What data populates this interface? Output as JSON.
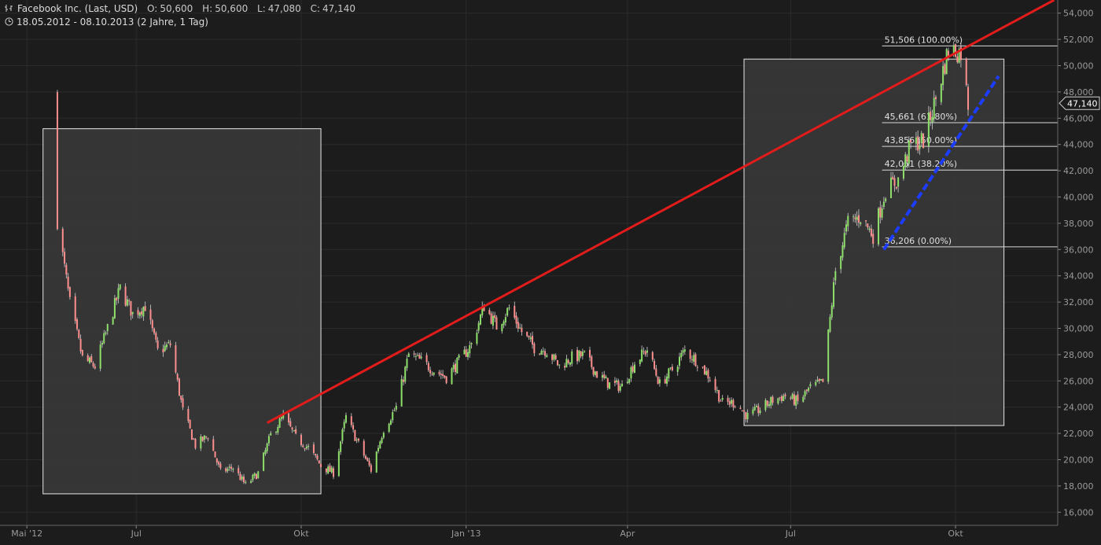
{
  "header": {
    "instrument": "Facebook Inc. (Last, USD)",
    "open_label": "O:",
    "open_value": "50,600",
    "high_label": "H:",
    "high_value": "50,600",
    "low_label": "L:",
    "low_value": "47,080",
    "close_label": "C:",
    "close_value": "47,140",
    "period": "18.05.2012 - 08.10.2013 (2 Jahre, 1 Tag)"
  },
  "chart_data": {
    "type": "candlestick",
    "title": "Facebook Inc. (Last, USD)",
    "ylim": [
      15000,
      55000
    ],
    "y_ticks": [
      16000,
      18000,
      20000,
      22000,
      24000,
      26000,
      28000,
      30000,
      32000,
      34000,
      36000,
      38000,
      40000,
      42000,
      44000,
      46000,
      48000,
      50000,
      52000,
      54000
    ],
    "y_tick_labels": [
      "16,000",
      "18,000",
      "20,000",
      "22,000",
      "24,000",
      "26,000",
      "28,000",
      "30,000",
      "32,000",
      "34,000",
      "36,000",
      "38,000",
      "40,000",
      "42,000",
      "44,000",
      "46,000",
      "48,000",
      "50,000",
      "52,000",
      "54,000"
    ],
    "x_range": [
      "2012-04-16",
      "2013-11-27"
    ],
    "x_ticks": [
      {
        "date": "2012-05-01",
        "label": "Mai '12"
      },
      {
        "date": "2012-07-01",
        "label": "Jul"
      },
      {
        "date": "2012-10-01",
        "label": "Okt"
      },
      {
        "date": "2013-01-01",
        "label": "Jan '13"
      },
      {
        "date": "2013-04-01",
        "label": "Apr"
      },
      {
        "date": "2013-07-01",
        "label": "Jul"
      },
      {
        "date": "2013-10-01",
        "label": "Okt"
      }
    ],
    "grid": true,
    "last_price_label": "47,140",
    "last_price": 47140,
    "up_color": "#8ee06a",
    "down_color": "#ff8f8f",
    "close_series": [
      [
        "2012-05-18",
        38230
      ],
      [
        "2012-05-25",
        31910
      ],
      [
        "2012-06-01",
        27720
      ],
      [
        "2012-06-08",
        27100
      ],
      [
        "2012-06-15",
        30010
      ],
      [
        "2012-06-22",
        33050
      ],
      [
        "2012-06-29",
        31100
      ],
      [
        "2012-07-06",
        31730
      ],
      [
        "2012-07-13",
        28250
      ],
      [
        "2012-07-20",
        28760
      ],
      [
        "2012-07-27",
        23710
      ],
      [
        "2012-08-03",
        21090
      ],
      [
        "2012-08-10",
        21810
      ],
      [
        "2012-08-17",
        19050
      ],
      [
        "2012-08-24",
        19410
      ],
      [
        "2012-08-31",
        18060
      ],
      [
        "2012-09-07",
        18980
      ],
      [
        "2012-09-14",
        21870
      ],
      [
        "2012-09-21",
        23290
      ],
      [
        "2012-09-28",
        21660
      ],
      [
        "2012-10-05",
        20910
      ],
      [
        "2012-10-12",
        19520
      ],
      [
        "2012-10-19",
        19000
      ],
      [
        "2012-10-26",
        23230
      ],
      [
        "2012-11-02",
        21180
      ],
      [
        "2012-11-09",
        19210
      ],
      [
        "2012-11-16",
        22360
      ],
      [
        "2012-11-23",
        24000
      ],
      [
        "2012-11-30",
        28000
      ],
      [
        "2012-12-07",
        27490
      ],
      [
        "2012-12-14",
        26810
      ],
      [
        "2012-12-21",
        26260
      ],
      [
        "2012-12-28",
        27500
      ],
      [
        "2013-01-04",
        28760
      ],
      [
        "2013-01-11",
        31720
      ],
      [
        "2013-01-18",
        30140
      ],
      [
        "2013-01-25",
        31540
      ],
      [
        "2013-02-01",
        29730
      ],
      [
        "2013-02-08",
        28550
      ],
      [
        "2013-02-15",
        28320
      ],
      [
        "2013-02-22",
        27130
      ],
      [
        "2013-03-01",
        27780
      ],
      [
        "2013-03-08",
        27960
      ],
      [
        "2013-03-15",
        26520
      ],
      [
        "2013-03-22",
        25730
      ],
      [
        "2013-03-29",
        25580
      ],
      [
        "2013-04-05",
        27390
      ],
      [
        "2013-04-12",
        28400
      ],
      [
        "2013-04-19",
        25730
      ],
      [
        "2013-04-26",
        26850
      ],
      [
        "2013-05-03",
        28310
      ],
      [
        "2013-05-10",
        27500
      ],
      [
        "2013-05-17",
        26250
      ],
      [
        "2013-05-24",
        24310
      ],
      [
        "2013-05-31",
        24350
      ],
      [
        "2013-06-07",
        23290
      ],
      [
        "2013-06-14",
        23850
      ],
      [
        "2013-06-21",
        24530
      ],
      [
        "2013-06-28",
        24880
      ],
      [
        "2013-07-05",
        24370
      ],
      [
        "2013-07-12",
        25480
      ],
      [
        "2013-07-19",
        25880
      ],
      [
        "2013-07-26",
        34360
      ],
      [
        "2013-08-02",
        38050
      ],
      [
        "2013-08-09",
        38500
      ],
      [
        "2013-08-16",
        37080
      ],
      [
        "2013-08-23",
        40550
      ],
      [
        "2013-08-30",
        41290
      ],
      [
        "2013-09-06",
        43950
      ],
      [
        "2013-09-13",
        44310
      ],
      [
        "2013-09-20",
        47490
      ],
      [
        "2013-09-27",
        51240
      ],
      [
        "2013-10-04",
        51040
      ],
      [
        "2013-10-08",
        47140
      ]
    ],
    "annotations": {
      "boxes": [
        {
          "x0": "2012-05-10",
          "x1": "2012-10-12",
          "y0": 17400,
          "y1": 45200
        },
        {
          "x0": "2013-06-05",
          "x1": "2013-10-28",
          "y0": 22600,
          "y1": 50500
        }
      ],
      "trendline_red": {
        "x0": "2012-09-12",
        "y0": 22800,
        "x1": "2013-11-25",
        "y1": 55000,
        "color": "#e21b1b"
      },
      "trendline_blue": {
        "x0": "2013-08-22",
        "y0": 36000,
        "x1": "2013-10-25",
        "y1": 49200,
        "color": "#1c3cff"
      },
      "fib_x0": "2013-08-21",
      "fibonacci": [
        {
          "value": 51506,
          "label": "51,506 (100.00%)"
        },
        {
          "value": 45661,
          "label": "45,661 (61.80%)"
        },
        {
          "value": 43856,
          "label": "43,856 (50.00%)"
        },
        {
          "value": 42051,
          "label": "42,051 (38.20%)"
        },
        {
          "value": 36206,
          "label": "36,206 (0.00%)"
        }
      ]
    }
  }
}
